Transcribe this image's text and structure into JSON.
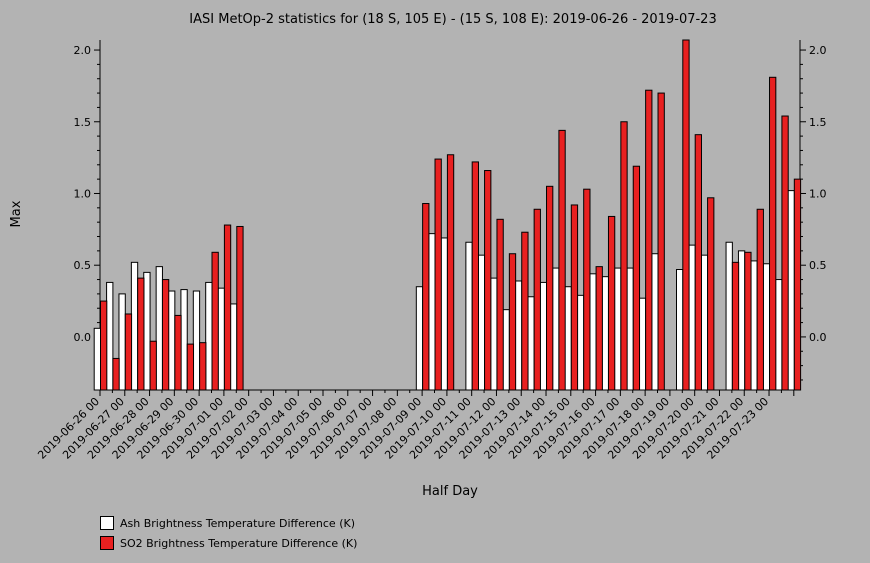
{
  "chart_data": {
    "type": "bar",
    "title": "IASI MetOp-2 statistics for (18 S, 105 E) - (15 S, 108 E): 2019-06-26 - 2019-07-23",
    "xlabel": "Half Day",
    "ylabel": "Max",
    "ylim": [
      -0.37,
      2.07
    ],
    "yticks": [
      "2.0",
      "1.5",
      "1.0",
      "0.5",
      "0.0"
    ],
    "ytick_values": [
      2.0,
      1.5,
      1.0,
      0.5,
      0.0
    ],
    "xticks": [
      "2019-06-26 00",
      "2019-06-27 00",
      "2019-06-28 00",
      "2019-06-29 00",
      "2019-06-30 00",
      "2019-07-01 00",
      "2019-07-02 00",
      "2019-07-03 00",
      "2019-07-04 00",
      "2019-07-05 00",
      "2019-07-06 00",
      "2019-07-07 00",
      "2019-07-08 00",
      "2019-07-09 00",
      "2019-07-10 00",
      "2019-07-11 00",
      "2019-07-12 00",
      "2019-07-13 00",
      "2019-07-14 00",
      "2019-07-15 00",
      "2019-07-16 00",
      "2019-07-17 00",
      "2019-07-18 00",
      "2019-07-19 00",
      "2019-07-20 00",
      "2019-07-21 00",
      "2019-07-22 00",
      "2019-07-23 00"
    ],
    "grid": false,
    "legend_position": "bottom-left",
    "series": [
      {
        "name": "Ash Brightness Temperature Difference (K)",
        "color": "#ffffff",
        "values": [
          0.06,
          0.38,
          0.3,
          0.52,
          0.45,
          0.49,
          0.32,
          0.33,
          0.32,
          0.38,
          0.34,
          0.23,
          null,
          null,
          null,
          null,
          null,
          null,
          null,
          null,
          null,
          null,
          null,
          null,
          null,
          null,
          0.35,
          0.72,
          0.69,
          null,
          0.66,
          0.57,
          0.41,
          0.19,
          0.39,
          0.28,
          0.38,
          0.48,
          0.35,
          0.29,
          0.44,
          0.42,
          0.48,
          0.48,
          0.27,
          0.58,
          null,
          0.47,
          0.64,
          0.57,
          null,
          0.66,
          0.6,
          0.53,
          0.51,
          0.4,
          1.02
        ]
      },
      {
        "name": "SO2 Brightness Temperature Difference (K)",
        "color": "#e82020",
        "values": [
          0.25,
          -0.15,
          0.16,
          0.41,
          -0.03,
          0.4,
          0.15,
          -0.05,
          -0.04,
          0.59,
          0.78,
          0.77,
          null,
          null,
          null,
          null,
          null,
          null,
          null,
          null,
          null,
          null,
          null,
          null,
          null,
          null,
          0.93,
          1.24,
          1.27,
          null,
          1.22,
          1.16,
          0.82,
          0.58,
          0.73,
          0.89,
          1.05,
          1.44,
          0.92,
          1.03,
          0.49,
          0.84,
          1.5,
          1.19,
          1.72,
          1.7,
          null,
          2.07,
          1.41,
          0.97,
          null,
          0.52,
          0.59,
          0.89,
          1.81,
          1.54,
          1.1
        ]
      }
    ]
  }
}
